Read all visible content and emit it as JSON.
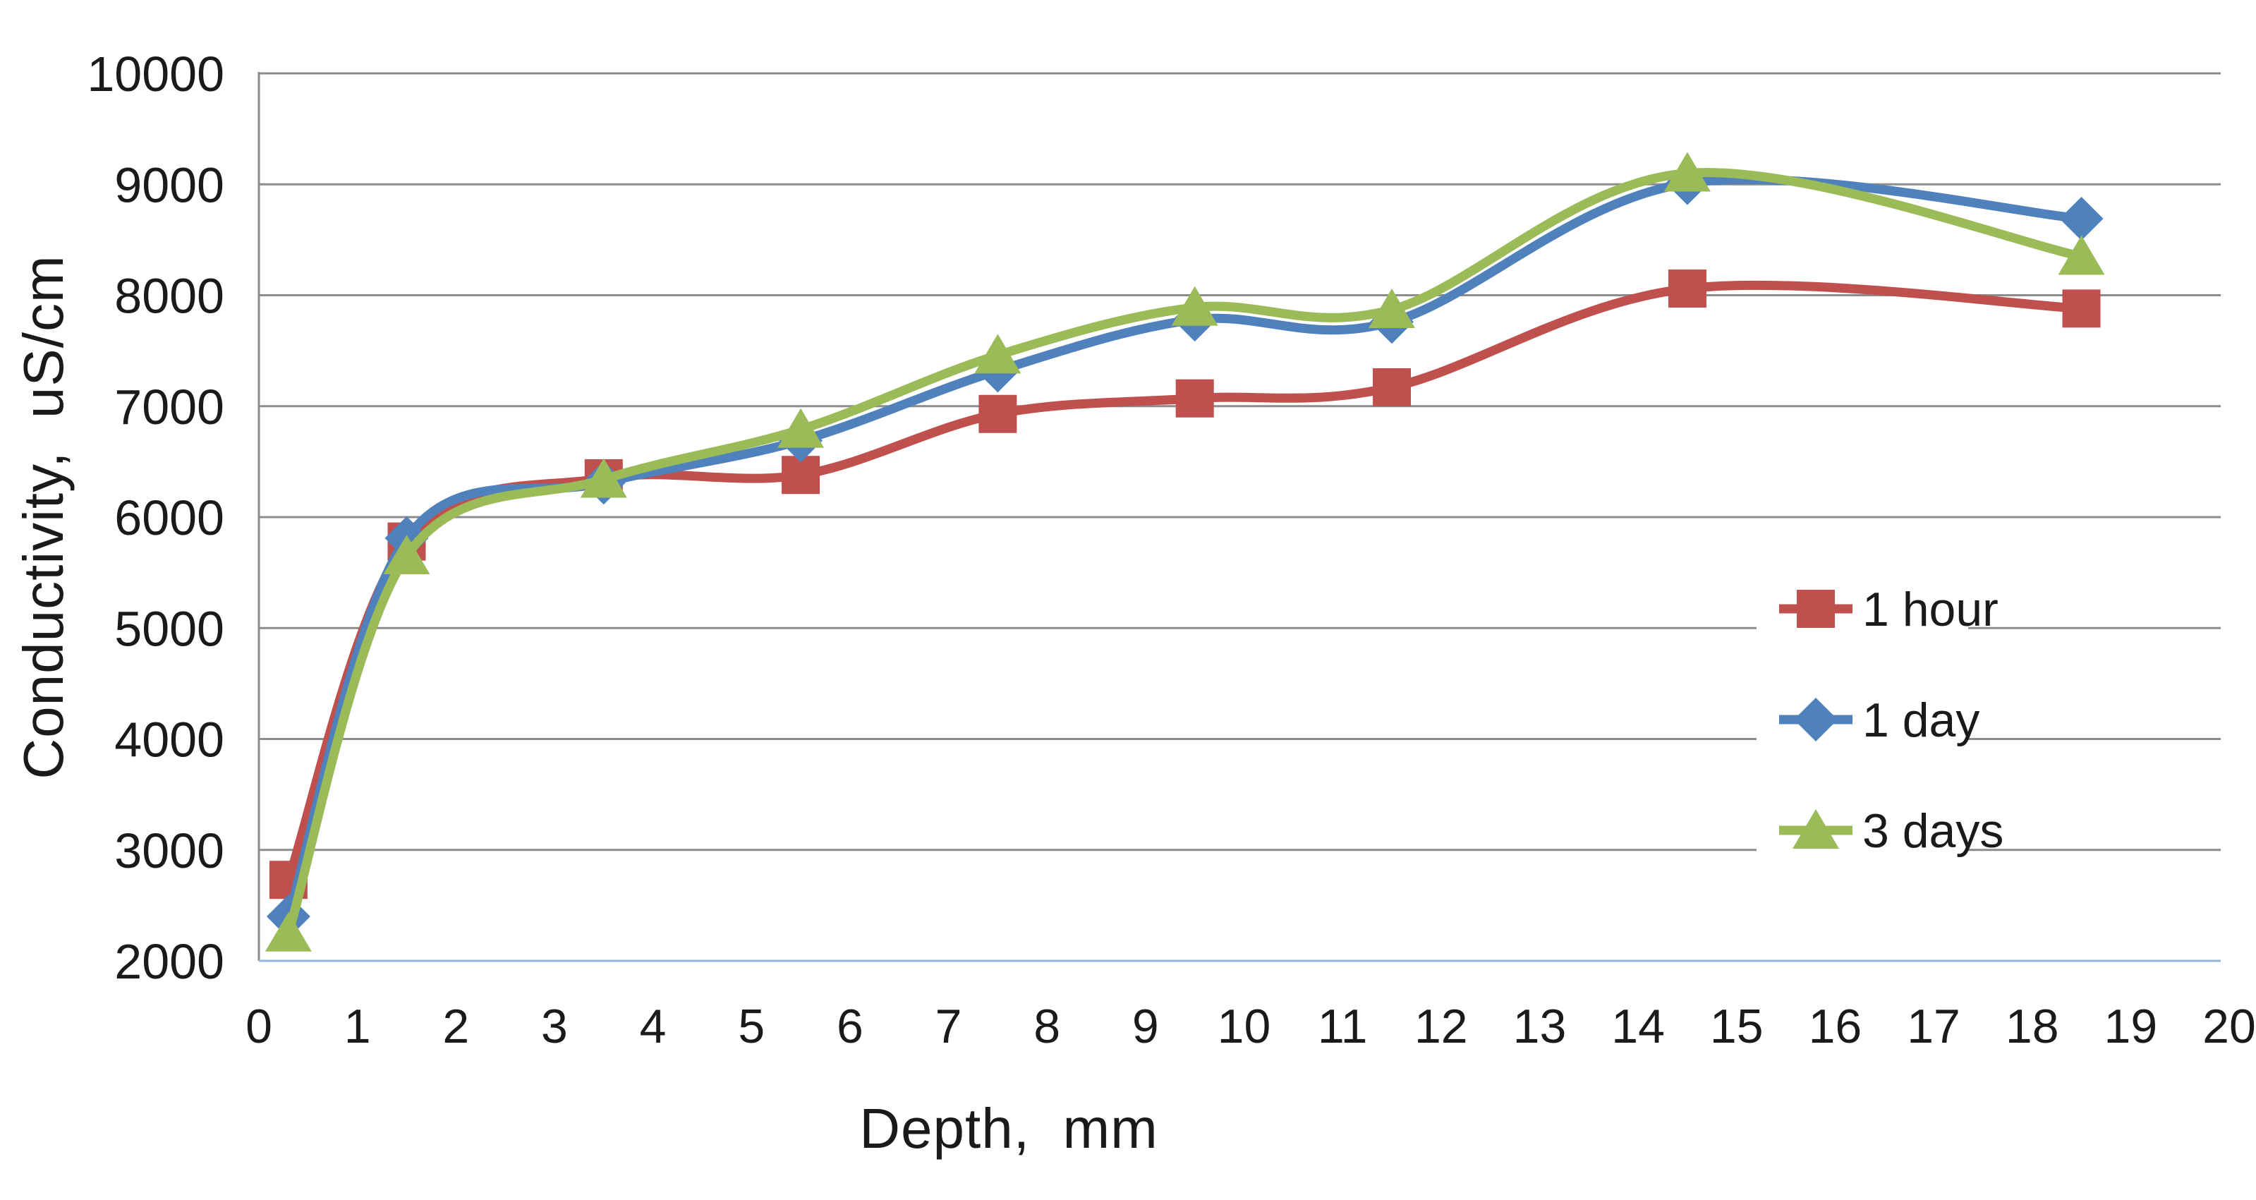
{
  "chart_data": {
    "type": "line",
    "title": "",
    "xlabel": "Depth,  mm",
    "ylabel": "Conductivity,  uS/cm",
    "x": [
      0.3,
      1.5,
      3.5,
      5.5,
      7.5,
      9.5,
      11.5,
      14.5,
      18.5
    ],
    "series": [
      {
        "name": "1 hour",
        "color": "#C0504D",
        "marker": "square",
        "values": [
          2730,
          5780,
          6350,
          6380,
          6930,
          7070,
          7170,
          8060,
          7880
        ]
      },
      {
        "name": "1 day",
        "color": "#4F81BD",
        "marker": "diamond",
        "values": [
          2400,
          5810,
          6310,
          6690,
          7320,
          7780,
          7760,
          9010,
          8690
        ]
      },
      {
        "name": "3 days",
        "color": "#9BBB59",
        "marker": "triangle",
        "values": [
          2250,
          5650,
          6340,
          6790,
          7460,
          7890,
          7870,
          9100,
          8350
        ]
      }
    ],
    "xlim": [
      0,
      20
    ],
    "ylim": [
      2000,
      10000
    ],
    "x_ticks": [
      0,
      1,
      2,
      3,
      4,
      5,
      6,
      7,
      8,
      9,
      10,
      11,
      12,
      13,
      14,
      15,
      16,
      17,
      18,
      19,
      20
    ],
    "y_ticks": [
      2000,
      3000,
      4000,
      5000,
      6000,
      7000,
      8000,
      9000,
      10000
    ],
    "grid": "horizontal",
    "smooth_lines": true,
    "legend": {
      "position": "inside-right",
      "labels": [
        "1 hour",
        "1 day",
        "3 days"
      ]
    },
    "colors": {
      "gridline": "#8C8C8C",
      "axis_left": "#8C8C8C",
      "axis_bottom": "#95B3D7",
      "text": "#1A1A1A",
      "background": "#FFFFFF"
    }
  }
}
